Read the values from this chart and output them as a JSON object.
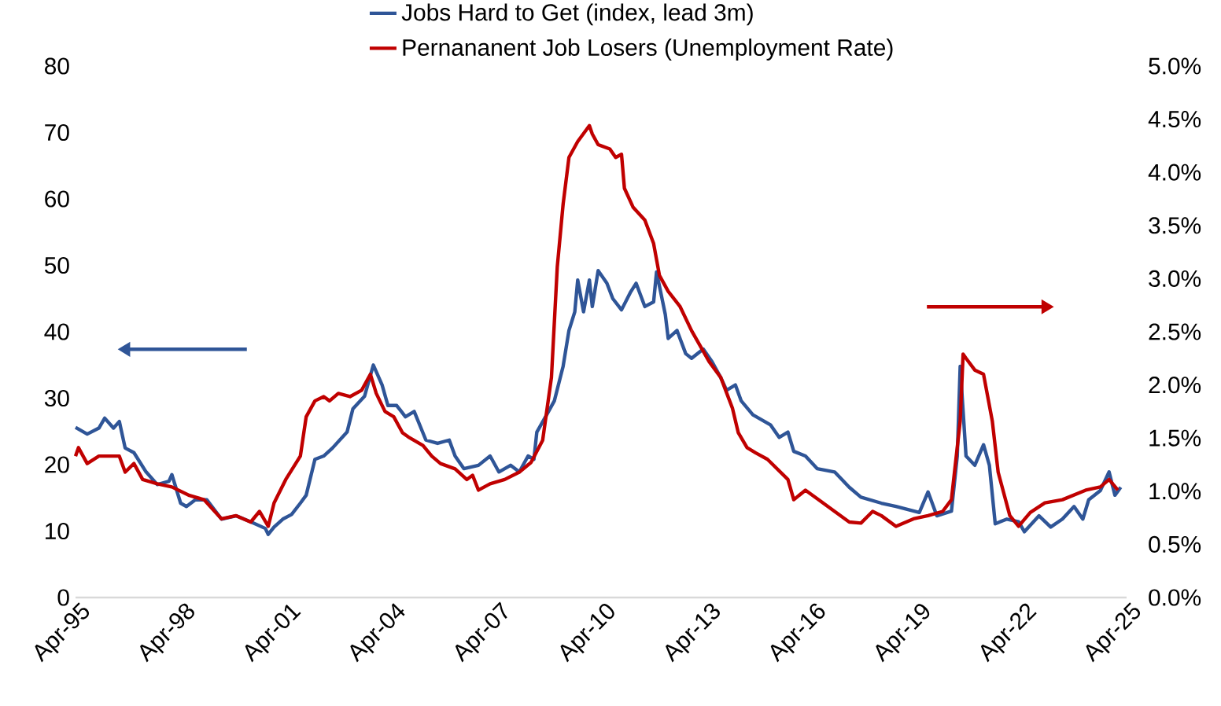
{
  "chart_data": {
    "type": "line",
    "legend": "top",
    "marker": "none",
    "line_style": "solid",
    "grid": false,
    "xlim": [
      "1995-04",
      "2025-04"
    ],
    "xticks": [
      {
        "value": "1995-04",
        "label": "Apr-95"
      },
      {
        "value": "1998-04",
        "label": "Apr-98"
      },
      {
        "value": "2001-04",
        "label": "Apr-01"
      },
      {
        "value": "2004-04",
        "label": "Apr-04"
      },
      {
        "value": "2007-04",
        "label": "Apr-07"
      },
      {
        "value": "2010-04",
        "label": "Apr-10"
      },
      {
        "value": "2013-04",
        "label": "Apr-13"
      },
      {
        "value": "2016-04",
        "label": "Apr-16"
      },
      {
        "value": "2019-04",
        "label": "Apr-19"
      },
      {
        "value": "2022-04",
        "label": "Apr-22"
      },
      {
        "value": "2025-04",
        "label": "Apr-25"
      }
    ],
    "ylim": [
      0,
      80
    ],
    "yticks": [
      0,
      10,
      20,
      30,
      40,
      50,
      60,
      70,
      80
    ],
    "y2lim": [
      0,
      5
    ],
    "y2ticks": [
      {
        "value": 0,
        "label": "0.0%"
      },
      {
        "value": 0.5,
        "label": "0.5%"
      },
      {
        "value": 1,
        "label": "1.0%"
      },
      {
        "value": 1.5,
        "label": "1.5%"
      },
      {
        "value": 2,
        "label": "2.0%"
      },
      {
        "value": 2.5,
        "label": "2.5%"
      },
      {
        "value": 3,
        "label": "3.0%"
      },
      {
        "value": 3.5,
        "label": "3.5%"
      },
      {
        "value": 4,
        "label": "4.0%"
      },
      {
        "value": 4.5,
        "label": "4.5%"
      },
      {
        "value": 5,
        "label": "5.0%"
      }
    ],
    "series": [
      {
        "name": "Jobs Hard to Get (index, lead 3m)",
        "color": "#2f5597",
        "axis": "y",
        "x": [
          "1995-04",
          "1995-08",
          "1995-12",
          "1996-02",
          "1996-05",
          "1996-07",
          "1996-09",
          "1996-12",
          "1997-04",
          "1997-08",
          "1997-12",
          "1998-01",
          "1998-04",
          "1998-06",
          "1998-09",
          "1999-01",
          "1999-06",
          "1999-11",
          "2000-04",
          "2000-09",
          "2000-10",
          "2000-12",
          "2001-03",
          "2001-06",
          "2001-09",
          "2001-11",
          "2002-02",
          "2002-05",
          "2002-08",
          "2003-01",
          "2003-03",
          "2003-07",
          "2003-10",
          "2004-01",
          "2004-03",
          "2004-06",
          "2004-09",
          "2004-12",
          "2005-04",
          "2005-08",
          "2005-12",
          "2006-02",
          "2006-05",
          "2006-10",
          "2007-02",
          "2007-05",
          "2007-09",
          "2007-12",
          "2008-03",
          "2008-05",
          "2008-06",
          "2008-10",
          "2008-12",
          "2009-03",
          "2009-05",
          "2009-07",
          "2009-08",
          "2009-10",
          "2009-12",
          "2010-01",
          "2010-03",
          "2010-06",
          "2010-08",
          "2010-11",
          "2011-02",
          "2011-04",
          "2011-07",
          "2011-10",
          "2011-11",
          "2012-02",
          "2012-03",
          "2012-06",
          "2012-09",
          "2012-11",
          "2013-03",
          "2013-06",
          "2013-09",
          "2013-11",
          "2014-02",
          "2014-04",
          "2014-08",
          "2015-02",
          "2015-05",
          "2015-08",
          "2015-10",
          "2016-02",
          "2016-06",
          "2016-12",
          "2017-05",
          "2017-09",
          "2018-04",
          "2018-09",
          "2019-05",
          "2019-08",
          "2019-11",
          "2020-04",
          "2020-06",
          "2020-07",
          "2020-09",
          "2020-12",
          "2021-03",
          "2021-05",
          "2021-07",
          "2021-11",
          "2022-03",
          "2022-05",
          "2022-10",
          "2023-02",
          "2023-06",
          "2023-10",
          "2024-01",
          "2024-03",
          "2024-07",
          "2024-10",
          "2024-12",
          "2025-02"
        ],
        "values": [
          25.6,
          24.6,
          25.5,
          27,
          25.5,
          26.5,
          22.5,
          21.8,
          19,
          17,
          17.5,
          18.5,
          14.2,
          13.7,
          14.7,
          14.7,
          11.8,
          12.3,
          11.4,
          10.4,
          9.5,
          10.6,
          11.8,
          12.5,
          14.2,
          15.4,
          20.8,
          21.3,
          22.5,
          24.9,
          28.4,
          30.3,
          35,
          32,
          28.9,
          28.9,
          27.2,
          28,
          23.7,
          23.2,
          23.7,
          21.3,
          19.4,
          19.9,
          21.3,
          18.9,
          19.9,
          18.9,
          21.3,
          20.8,
          24.9,
          28,
          29.6,
          34.8,
          40.2,
          43,
          47.8,
          43,
          47.8,
          43.8,
          49.2,
          47.3,
          45,
          43.3,
          45.9,
          47.3,
          43.8,
          44.5,
          49,
          42.6,
          39,
          40.2,
          36.7,
          36,
          37.4,
          35.5,
          33.1,
          31.2,
          32,
          29.6,
          27.5,
          26,
          24.1,
          24.9,
          22,
          21.3,
          19.4,
          18.9,
          16.6,
          15.1,
          14.2,
          13.7,
          12.8,
          15.9,
          12.3,
          13,
          21.3,
          34.8,
          21.3,
          19.9,
          23,
          19.9,
          11.1,
          11.8,
          11.4,
          9.9,
          12.3,
          10.6,
          11.8,
          13.7,
          11.8,
          14.7,
          16.1,
          18.9,
          15.4,
          16.6
        ]
      },
      {
        "name": "Pernananent Job Losers (Unemployment Rate)",
        "color": "#c00000",
        "axis": "y2",
        "x": [
          "1995-04",
          "1995-05",
          "1995-08",
          "1995-12",
          "1996-07",
          "1996-09",
          "1996-12",
          "1997-03",
          "1997-08",
          "1998-01",
          "1998-07",
          "1998-12",
          "1999-06",
          "1999-11",
          "2000-04",
          "2000-07",
          "2000-10",
          "2000-12",
          "2001-04",
          "2001-09",
          "2001-11",
          "2002-02",
          "2002-05",
          "2002-07",
          "2002-10",
          "2003-02",
          "2003-06",
          "2003-09",
          "2003-11",
          "2004-02",
          "2004-05",
          "2004-08",
          "2004-10",
          "2005-03",
          "2005-06",
          "2005-09",
          "2006-02",
          "2006-06",
          "2006-08",
          "2006-10",
          "2007-02",
          "2007-07",
          "2007-12",
          "2008-04",
          "2008-08",
          "2008-11",
          "2009-01",
          "2009-03",
          "2009-05",
          "2009-08",
          "2009-12",
          "2010-01",
          "2010-03",
          "2010-07",
          "2010-09",
          "2010-11",
          "2010-12",
          "2011-03",
          "2011-07",
          "2011-10",
          "2011-12",
          "2012-03",
          "2012-07",
          "2012-11",
          "2013-05",
          "2013-09",
          "2014-01",
          "2014-03",
          "2014-06",
          "2014-09",
          "2015-01",
          "2015-08",
          "2015-10",
          "2016-02",
          "2016-06",
          "2016-12",
          "2017-05",
          "2017-09",
          "2018-01",
          "2018-04",
          "2018-09",
          "2019-03",
          "2019-08",
          "2020-01",
          "2020-04",
          "2020-07",
          "2020-08",
          "2020-09",
          "2020-12",
          "2021-03",
          "2021-06",
          "2021-08",
          "2021-12",
          "2022-03",
          "2022-07",
          "2022-12",
          "2023-06",
          "2024-02",
          "2024-07",
          "2024-10",
          "2025-01"
        ],
        "values": [
          1.33,
          1.41,
          1.26,
          1.33,
          1.33,
          1.18,
          1.26,
          1.11,
          1.07,
          1.04,
          0.96,
          0.92,
          0.74,
          0.77,
          0.71,
          0.81,
          0.67,
          0.89,
          1.11,
          1.33,
          1.7,
          1.85,
          1.89,
          1.85,
          1.92,
          1.89,
          1.95,
          2.1,
          1.92,
          1.75,
          1.7,
          1.55,
          1.51,
          1.43,
          1.33,
          1.26,
          1.21,
          1.11,
          1.15,
          1.01,
          1.07,
          1.11,
          1.18,
          1.27,
          1.48,
          2.07,
          3.11,
          3.7,
          4.14,
          4.29,
          4.44,
          4.36,
          4.26,
          4.22,
          4.14,
          4.17,
          3.85,
          3.67,
          3.55,
          3.33,
          3.03,
          2.88,
          2.74,
          2.51,
          2.22,
          2.07,
          1.78,
          1.55,
          1.41,
          1.36,
          1.3,
          1.11,
          0.92,
          1.01,
          0.93,
          0.81,
          0.71,
          0.7,
          0.81,
          0.77,
          0.67,
          0.74,
          0.77,
          0.81,
          0.92,
          1.66,
          2.29,
          2.25,
          2.14,
          2.1,
          1.66,
          1.18,
          0.77,
          0.67,
          0.8,
          0.89,
          0.92,
          1.01,
          1.04,
          1.11,
          1.01
        ]
      }
    ]
  }
}
